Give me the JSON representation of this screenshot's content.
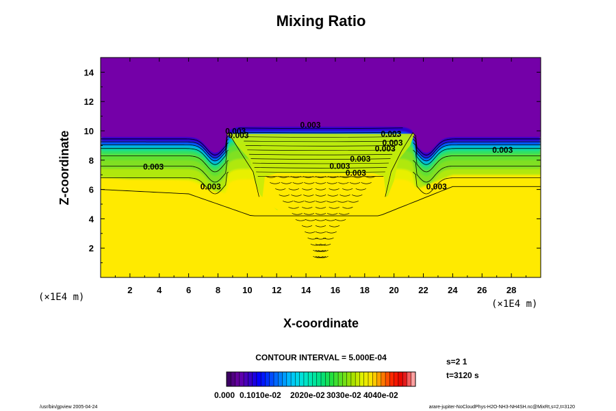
{
  "chart_data": {
    "type": "heatmap",
    "title": "Mixing Ratio",
    "xlabel": "X-coordinate",
    "ylabel": "Z-coordinate",
    "x_scale_note": "(×1E4 m)",
    "y_scale_note": "(×1E4 m)",
    "xlim": [
      0,
      30
    ],
    "ylim": [
      0,
      15
    ],
    "x_ticks": [
      "2",
      "4",
      "6",
      "8",
      "10",
      "12",
      "14",
      "16",
      "18",
      "20",
      "22",
      "24",
      "26",
      "28"
    ],
    "y_ticks": [
      "2",
      "4",
      "6",
      "8",
      "10",
      "12",
      "14"
    ],
    "field": {
      "background_value": 0.004,
      "top_value": 0.0,
      "interface_height_outer": 6.0,
      "interface_height_middle": 10.3,
      "trough_centers": [
        7.8,
        22.2
      ],
      "trough_depth": 8.5,
      "central_plume": {
        "x_min": 8.5,
        "x_max": 21.5,
        "top": 10.5
      },
      "inner_dome": {
        "x_min": 11.0,
        "x_max": 19.5,
        "top": 7.1
      }
    },
    "contour_interval": "CONTOUR INTERVAL = 5.000E-04",
    "contour_labels": [
      {
        "x": 3.6,
        "z": 7.35,
        "text": "0.003"
      },
      {
        "x": 7.5,
        "z": 6.0,
        "text": "0.003"
      },
      {
        "x": 9.2,
        "z": 9.8,
        "text": "0.003"
      },
      {
        "x": 9.4,
        "z": 9.5,
        "text": "0.003"
      },
      {
        "x": 14.3,
        "z": 10.2,
        "text": "0.003"
      },
      {
        "x": 16.3,
        "z": 7.4,
        "text": "0.003"
      },
      {
        "x": 17.7,
        "z": 7.9,
        "text": "0.003"
      },
      {
        "x": 17.4,
        "z": 6.95,
        "text": "0.003"
      },
      {
        "x": 19.8,
        "z": 9.6,
        "text": "0.003"
      },
      {
        "x": 19.9,
        "z": 9.0,
        "text": "0.003"
      },
      {
        "x": 19.4,
        "z": 8.6,
        "text": "0.003"
      },
      {
        "x": 27.4,
        "z": 8.5,
        "text": "0.003"
      },
      {
        "x": 22.9,
        "z": 6.0,
        "text": "0.003"
      }
    ],
    "colorbar": {
      "min_label": "0.000",
      "tick_labels": "0.1010e-02",
      "tick_labels_2": "2020e-02",
      "tick_labels_3": "3030e-02",
      "tick_labels_4": "4040e-02",
      "colors": [
        "#3c0064",
        "#6a00a8",
        "#3a00c0",
        "#0000ff",
        "#0040ff",
        "#0080ff",
        "#00c0ff",
        "#00e0e0",
        "#00e8b0",
        "#00e080",
        "#20e040",
        "#60e020",
        "#a0e000",
        "#e0f000",
        "#ffe000",
        "#ff8000",
        "#ff2000",
        "#e00000",
        "#ffa0a0"
      ]
    }
  },
  "info": {
    "s_label": "s=2 1",
    "t_label": "t=3120 s"
  },
  "footer": {
    "left": "/usr/bin/gpview 2005-04-24",
    "right": "arare-jupiter-NoCloudPhys-H2O-NH3-NH4SH.nc@MixRt,s=2,t=3120"
  },
  "colors": {
    "purple": "#7400a8",
    "yellow": "#ffea00"
  }
}
